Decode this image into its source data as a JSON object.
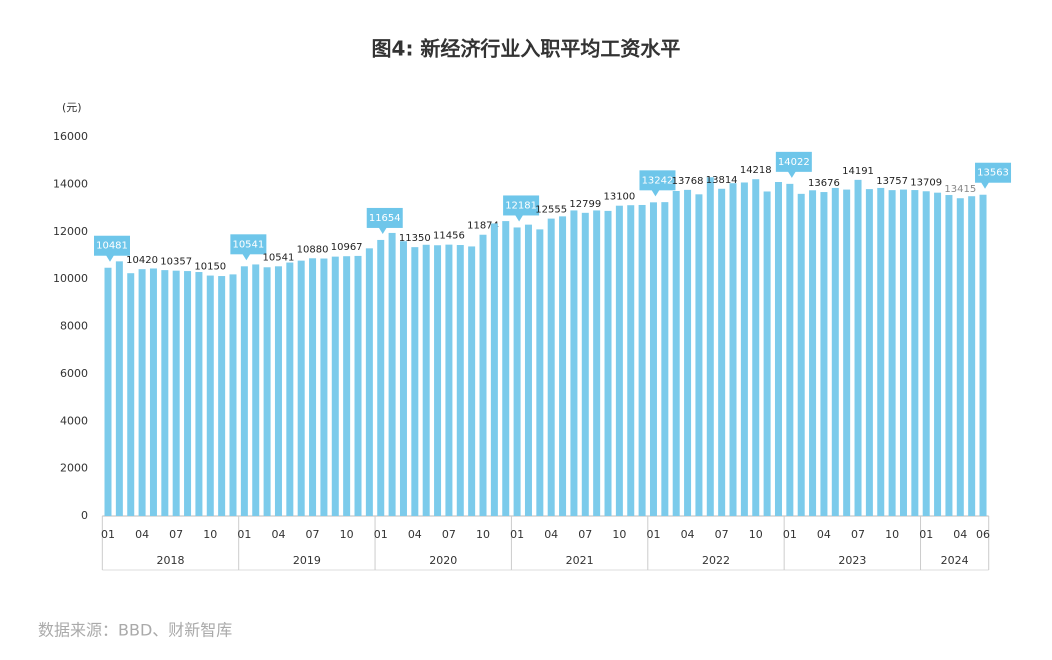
{
  "chart_data": {
    "type": "bar",
    "title": "图4: 新经济行业入职平均工资水平",
    "y_unit": "(元)",
    "source": "数据来源：BBD、财新智库",
    "categories": [
      "01",
      null,
      null,
      "04",
      null,
      null,
      "07",
      null,
      null,
      "10",
      null,
      null,
      "01",
      null,
      null,
      "04",
      null,
      null,
      "07",
      null,
      null,
      "10",
      null,
      null,
      "01",
      null,
      null,
      "04",
      null,
      null,
      "07",
      null,
      null,
      "10",
      null,
      null,
      "01",
      null,
      null,
      "04",
      null,
      null,
      "07",
      null,
      null,
      "10",
      null,
      null,
      "01",
      null,
      null,
      "04",
      null,
      null,
      "07",
      null,
      null,
      "10",
      null,
      null,
      "01",
      null,
      null,
      "04",
      null,
      null,
      "07",
      null,
      null,
      "10",
      null,
      null,
      "01",
      null,
      null,
      "04",
      null,
      "06"
    ],
    "years": [
      "2018",
      "2019",
      "2020",
      "2021",
      "2022",
      "2023",
      "2024"
    ],
    "values": [
      10481,
      10750,
      10250,
      10420,
      10450,
      10380,
      10357,
      10340,
      10300,
      10150,
      10130,
      10200,
      10541,
      10620,
      10500,
      10541,
      10700,
      10780,
      10880,
      10870,
      10950,
      10967,
      10980,
      11300,
      11654,
      11950,
      11600,
      11350,
      11450,
      11430,
      11456,
      11440,
      11380,
      11874,
      12350,
      12450,
      12181,
      12300,
      12100,
      12555,
      12650,
      12900,
      12799,
      12900,
      12880,
      13100,
      13120,
      13130,
      13242,
      13250,
      13720,
      13768,
      13580,
      14300,
      13814,
      14050,
      14080,
      14218,
      13700,
      14100,
      14022,
      13600,
      13750,
      13676,
      13850,
      13780,
      14191,
      13800,
      13850,
      13757,
      13780,
      13760,
      13709,
      13650,
      13550,
      13415,
      13500,
      13563
    ],
    "value_labels": [
      "10481",
      null,
      null,
      "10420",
      null,
      null,
      "10357",
      null,
      null,
      "10150",
      null,
      null,
      "10541",
      null,
      null,
      "10541",
      null,
      null,
      "10880",
      null,
      null,
      "10967",
      null,
      null,
      "11654",
      null,
      null,
      "11350",
      null,
      null,
      "11456",
      null,
      null,
      "11874",
      null,
      null,
      "12181",
      null,
      null,
      "12555",
      null,
      null,
      "12799",
      null,
      null,
      "13100",
      null,
      null,
      "13242",
      null,
      null,
      "13768",
      null,
      null,
      "13814",
      null,
      null,
      "14218",
      null,
      null,
      "14022",
      null,
      null,
      "13676",
      null,
      null,
      "14191",
      null,
      null,
      "13757",
      null,
      null,
      "13709",
      null,
      null,
      "13415",
      null,
      "13563"
    ],
    "color": "#7ccbeb",
    "ylim": [
      0,
      16000
    ],
    "yticks": [
      0,
      2000,
      4000,
      6000,
      8000,
      10000,
      12000,
      14000,
      16000
    ]
  }
}
